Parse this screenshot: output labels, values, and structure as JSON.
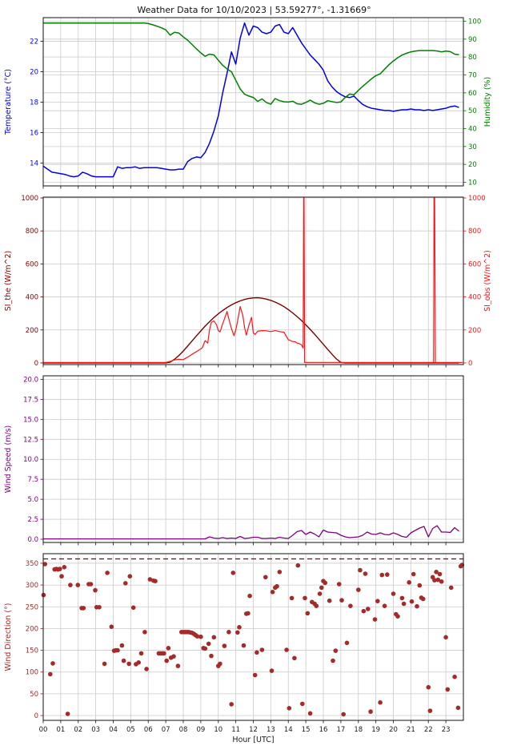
{
  "title": "Weather Data for 10/10/2023 | 53.59277°, -1.31669°",
  "style": {
    "background": "#ffffff",
    "grid_color": "#cbcbcb",
    "spine_color": "#262626",
    "x_tick_text_color": "#1a1a1a",
    "title_color": "#111111"
  },
  "x_axis": {
    "label": "Hour [UTC]",
    "range": [
      0,
      24
    ],
    "tick_labels": [
      "00",
      "01",
      "02",
      "03",
      "04",
      "05",
      "06",
      "07",
      "08",
      "09",
      "10",
      "11",
      "12",
      "13",
      "14",
      "15",
      "16",
      "17",
      "18",
      "19",
      "20",
      "21",
      "22",
      "23"
    ]
  },
  "chart_data": [
    {
      "name": "temperature-humidity",
      "type": "line",
      "show_x_labels": false,
      "left_axis": {
        "label": "Temperature (°C)",
        "color": "#0000ee",
        "range": [
          12.5,
          23.55
        ],
        "ticks": [
          14,
          16,
          18,
          20,
          22
        ],
        "tick_labels": [
          "14",
          "16",
          "18",
          "20",
          "22"
        ],
        "grid": true
      },
      "right_axis": {
        "label": "Humidity (%)",
        "color": "#008000",
        "range": [
          8,
          102
        ],
        "ticks": [
          10,
          20,
          30,
          40,
          50,
          60,
          70,
          80,
          90,
          100
        ],
        "tick_labels": [
          "10",
          "20",
          "30",
          "40",
          "50",
          "60",
          "70",
          "80",
          "90",
          "100"
        ],
        "grid": true
      },
      "series": [
        {
          "name": "temperature",
          "axis": "left",
          "color": "#0000ee",
          "width": 1.5,
          "x_start": 0,
          "x_step": 0.25,
          "y": [
            13.8,
            13.6,
            13.4,
            13.35,
            13.3,
            13.25,
            13.15,
            13.1,
            13.15,
            13.4,
            13.3,
            13.15,
            13.1,
            13.1,
            13.1,
            13.1,
            13.1,
            13.75,
            13.65,
            13.7,
            13.7,
            13.75,
            13.65,
            13.7,
            13.7,
            13.7,
            13.7,
            13.65,
            13.6,
            13.55,
            13.55,
            13.6,
            13.6,
            14.1,
            14.3,
            14.4,
            14.35,
            14.7,
            15.3,
            16.1,
            17.1,
            18.6,
            19.9,
            21.3,
            20.5,
            22.2,
            23.2,
            22.4,
            23.0,
            22.9,
            22.6,
            22.5,
            22.6,
            23.0,
            23.1,
            22.6,
            22.5,
            22.9,
            22.4,
            21.9,
            21.5,
            21.1,
            20.8,
            20.5,
            20.1,
            19.4,
            19.0,
            18.7,
            18.5,
            18.35,
            18.3,
            18.4,
            18.1,
            17.85,
            17.7,
            17.6,
            17.55,
            17.5,
            17.45,
            17.45,
            17.4,
            17.45,
            17.5,
            17.5,
            17.55,
            17.5,
            17.5,
            17.45,
            17.5,
            17.45,
            17.5,
            17.55,
            17.6,
            17.7,
            17.75,
            17.65
          ]
        },
        {
          "name": "humidity",
          "axis": "right",
          "color": "#008000",
          "width": 1.5,
          "x_start": 0,
          "x_step": 0.25,
          "y": [
            99,
            99,
            99,
            99,
            99,
            99,
            99,
            99,
            99,
            99,
            99,
            99,
            99,
            99,
            99,
            99,
            99,
            99,
            99,
            99,
            99,
            99,
            99,
            99,
            98.7,
            98.0,
            97.2,
            96.3,
            95.2,
            92.2,
            93.8,
            93.4,
            91.2,
            89.4,
            87.0,
            84.6,
            82.3,
            80.4,
            81.6,
            81.2,
            78.2,
            75.4,
            73.3,
            71.8,
            67.0,
            62.2,
            59.2,
            58.2,
            57.4,
            55.2,
            56.6,
            54.6,
            53.6,
            56.8,
            55.6,
            55.0,
            54.8,
            55.3,
            53.9,
            53.6,
            54.6,
            55.9,
            54.4,
            53.6,
            54.1,
            55.6,
            55.1,
            54.6,
            54.9,
            57.4,
            59.3,
            58.9,
            61.4,
            63.6,
            65.7,
            67.8,
            69.6,
            70.6,
            73.2,
            75.7,
            77.8,
            79.6,
            81.1,
            82.1,
            82.9,
            83.3,
            83.6,
            83.6,
            83.6,
            83.6,
            83.4,
            82.9,
            83.3,
            83.0,
            81.6,
            81.3
          ]
        }
      ]
    },
    {
      "name": "solar-irradiance",
      "type": "line",
      "show_x_labels": false,
      "left_axis": {
        "label": "SI_the (W/m^2)",
        "color": "#8b0000",
        "range": [
          -10,
          1005
        ],
        "ticks": [
          0,
          200,
          400,
          600,
          800,
          1000
        ],
        "tick_labels": [
          "0",
          "200",
          "400",
          "600",
          "800",
          "1000"
        ],
        "grid": true
      },
      "right_axis": {
        "label": "SI_obs (W/m^2)",
        "color": "#ff1414",
        "range": [
          -10,
          1005
        ],
        "ticks": [
          0,
          200,
          400,
          600,
          800,
          1000
        ],
        "tick_labels": [
          "0",
          "200",
          "400",
          "600",
          "800",
          "1000"
        ],
        "grid": false
      },
      "series": [
        {
          "name": "si-theoretical",
          "axis": "left",
          "color": "#7a0000",
          "width": 1.4,
          "x_start": 0,
          "x_step": 0.25,
          "y": [
            0,
            0,
            0,
            0,
            0,
            0,
            0,
            0,
            0,
            0,
            0,
            0,
            0,
            0,
            0,
            0,
            0,
            0,
            0,
            0,
            0,
            0,
            0,
            0,
            0,
            0,
            0,
            0,
            0,
            5,
            22,
            45,
            72,
            102,
            133,
            164,
            194,
            223,
            250,
            275,
            298,
            318,
            336,
            352,
            365,
            376,
            385,
            391,
            394,
            395,
            392,
            387,
            379,
            369,
            356,
            341,
            323,
            303,
            281,
            257,
            231,
            203,
            174,
            144,
            113,
            82,
            52,
            24,
            3,
            0,
            0,
            0,
            0,
            0,
            0,
            0,
            0,
            0,
            0,
            0,
            0,
            0,
            0,
            0,
            0,
            0,
            0,
            0,
            0,
            0,
            0,
            0,
            0,
            0,
            0,
            0
          ]
        },
        {
          "name": "si-observed",
          "axis": "right",
          "color": "#ff1414",
          "width": 1.2,
          "x": [
            0,
            7.0,
            7.25,
            7.5,
            7.75,
            8.0,
            8.25,
            8.5,
            8.75,
            9.0,
            9.1,
            9.25,
            9.4,
            9.5,
            9.6,
            9.75,
            9.9,
            10.0,
            10.1,
            10.25,
            10.4,
            10.5,
            10.6,
            10.75,
            10.9,
            11.0,
            11.1,
            11.25,
            11.4,
            11.5,
            11.6,
            11.75,
            11.9,
            12.0,
            12.1,
            12.25,
            12.5,
            12.75,
            13.0,
            13.25,
            13.5,
            13.75,
            14.0,
            14.25,
            14.4,
            14.5,
            14.6,
            14.75,
            14.85,
            14.88,
            14.9,
            14.93,
            15.0,
            22.3,
            22.32,
            22.36,
            22.4,
            23.95
          ],
          "y": [
            3,
            3,
            10,
            18,
            22,
            20,
            35,
            52,
            68,
            85,
            95,
            135,
            120,
            200,
            245,
            255,
            230,
            196,
            188,
            236,
            282,
            312,
            268,
            208,
            165,
            200,
            252,
            342,
            288,
            215,
            168,
            228,
            276,
            182,
            172,
            192,
            196,
            195,
            190,
            196,
            190,
            186,
            140,
            130,
            128,
            120,
            118,
            110,
            90,
            1000,
            1000,
            3,
            3,
            3,
            1000,
            1000,
            3,
            3
          ]
        }
      ]
    },
    {
      "name": "wind-speed",
      "type": "line",
      "show_x_labels": false,
      "left_axis": {
        "label": "Wind Speed (m/s)",
        "color": "#800080",
        "range": [
          -0.4,
          20.45
        ],
        "ticks": [
          0,
          2.5,
          5,
          7.5,
          10,
          12.5,
          15,
          17.5,
          20
        ],
        "tick_labels": [
          "0.0",
          "2.5",
          "5.0",
          "7.5",
          "10.0",
          "12.5",
          "15.0",
          "17.5",
          "20.0"
        ],
        "grid": true
      },
      "right_axis": null,
      "series": [
        {
          "name": "wind-speed",
          "axis": "left",
          "color": "#800080",
          "width": 1.3,
          "x_start": 0,
          "x_step": 0.25,
          "y": [
            0.05,
            0.05,
            0.05,
            0.05,
            0.05,
            0.05,
            0.05,
            0.05,
            0.05,
            0.05,
            0.05,
            0.05,
            0.05,
            0.05,
            0.05,
            0.05,
            0.05,
            0.05,
            0.05,
            0.05,
            0.05,
            0.05,
            0.05,
            0.05,
            0.05,
            0.05,
            0.05,
            0.05,
            0.05,
            0.05,
            0.05,
            0.05,
            0.05,
            0.05,
            0.05,
            0.05,
            0.05,
            0.05,
            0.3,
            0.15,
            0.1,
            0.2,
            0.1,
            0.15,
            0.1,
            0.35,
            0.1,
            0.15,
            0.25,
            0.25,
            0.1,
            0.1,
            0.15,
            0.1,
            0.25,
            0.15,
            0.1,
            0.5,
            0.95,
            1.1,
            0.6,
            0.9,
            0.65,
            0.3,
            1.15,
            0.9,
            0.85,
            0.8,
            0.5,
            0.3,
            0.2,
            0.25,
            0.3,
            0.5,
            0.9,
            0.65,
            0.6,
            0.8,
            0.6,
            0.55,
            0.8,
            0.6,
            0.35,
            0.25,
            0.8,
            1.1,
            1.4,
            1.6,
            0.3,
            1.35,
            1.7,
            0.9,
            0.9,
            0.85,
            1.45,
            1.0
          ]
        }
      ]
    },
    {
      "name": "wind-direction",
      "type": "scatter",
      "show_x_labels": true,
      "left_axis": {
        "label": "Wind Direction (°)",
        "color": "#a52a2a",
        "range": [
          -11,
          372
        ],
        "ticks": [
          0,
          50,
          100,
          150,
          200,
          250,
          300,
          350
        ],
        "tick_labels": [
          "0",
          "50",
          "100",
          "150",
          "200",
          "250",
          "300",
          "350"
        ],
        "grid": true
      },
      "right_axis": null,
      "dashed_line": {
        "value": 360,
        "color": "#8b0000"
      },
      "series": [
        {
          "name": "wind-direction",
          "axis": "left",
          "color": "#a52a2a",
          "marker": "circle",
          "x": [
            0.02,
            0.1,
            0.4,
            0.55,
            0.65,
            0.75,
            0.85,
            0.95,
            1.05,
            1.2,
            1.4,
            1.55,
            1.98,
            2.2,
            2.3,
            2.6,
            2.72,
            2.97,
            3.05,
            3.2,
            3.5,
            3.66,
            3.9,
            4.05,
            4.15,
            4.25,
            4.5,
            4.6,
            4.7,
            4.9,
            4.95,
            5.15,
            5.3,
            5.45,
            5.6,
            5.8,
            5.9,
            6.1,
            6.3,
            6.4,
            6.6,
            6.7,
            6.8,
            6.9,
            7.05,
            7.15,
            7.3,
            7.45,
            7.7,
            7.9,
            8.0,
            8.1,
            8.2,
            8.3,
            8.4,
            8.5,
            8.6,
            8.7,
            8.8,
            9.0,
            9.15,
            9.25,
            9.45,
            9.6,
            9.75,
            10.0,
            10.1,
            10.35,
            10.6,
            10.75,
            10.85,
            11.1,
            11.2,
            11.45,
            11.6,
            11.7,
            11.8,
            12.1,
            12.2,
            12.5,
            12.7,
            13.05,
            13.1,
            13.25,
            13.35,
            13.5,
            13.9,
            14.05,
            14.2,
            14.35,
            14.55,
            14.8,
            14.95,
            15.1,
            15.25,
            15.35,
            15.5,
            15.6,
            15.8,
            15.9,
            16.0,
            16.1,
            16.35,
            16.55,
            16.7,
            16.9,
            17.05,
            17.15,
            17.35,
            17.55,
            18.0,
            18.1,
            18.3,
            18.4,
            18.55,
            18.7,
            18.95,
            19.1,
            19.25,
            19.35,
            19.5,
            19.65,
            20.0,
            20.15,
            20.25,
            20.5,
            20.6,
            20.9,
            21.05,
            21.15,
            21.35,
            21.5,
            21.6,
            21.7,
            22.0,
            22.1,
            22.25,
            22.35,
            22.45,
            22.55,
            22.65,
            22.75,
            23.0,
            23.1,
            23.3,
            23.5,
            23.7,
            23.85,
            23.92
          ],
          "y": [
            277,
            348,
            95,
            120,
            336,
            337,
            336,
            337,
            320,
            341,
            4,
            300,
            300,
            247,
            247,
            302,
            302,
            288,
            249,
            249,
            119,
            328,
            204,
            149,
            150,
            150,
            161,
            126,
            304,
            119,
            320,
            248,
            118,
            122,
            143,
            192,
            107,
            313,
            310,
            309,
            143,
            143,
            143,
            143,
            126,
            155,
            133,
            136,
            114,
            192,
            192,
            192,
            192,
            192,
            191,
            190,
            188,
            185,
            182,
            181,
            155,
            154,
            165,
            137,
            180,
            114,
            119,
            160,
            192,
            26,
            328,
            191,
            203,
            161,
            234,
            235,
            275,
            93,
            145,
            151,
            318,
            103,
            284,
            294,
            297,
            330,
            151,
            17,
            270,
            132,
            345,
            27,
            270,
            235,
            5,
            261,
            257,
            252,
            280,
            294,
            309,
            305,
            264,
            126,
            149,
            302,
            265,
            3,
            167,
            252,
            289,
            334,
            240,
            326,
            245,
            9,
            221,
            263,
            30,
            323,
            252,
            324,
            280,
            233,
            228,
            270,
            257,
            306,
            262,
            325,
            251,
            299,
            271,
            268,
            65,
            11,
            318,
            311,
            330,
            312,
            325,
            308,
            180,
            60,
            294,
            89,
            18,
            343,
            346
          ]
        }
      ]
    }
  ]
}
